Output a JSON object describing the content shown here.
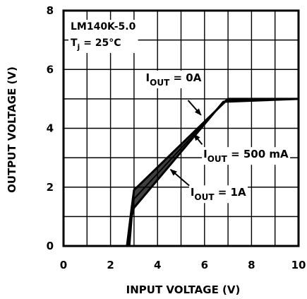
{
  "chart_data": {
    "type": "line",
    "title": {
      "main": "LM140K-5.0",
      "condition_prefix": "T",
      "condition_sub": "j",
      "condition_suffix": " = 25°C"
    },
    "xlabel": "INPUT VOLTAGE (V)",
    "ylabel": "OUTPUT VOLTAGE (V)",
    "xlim": [
      0,
      10
    ],
    "ylim": [
      0,
      8
    ],
    "xticks": [
      0,
      2,
      4,
      6,
      8,
      10
    ],
    "yticks": [
      0,
      2,
      4,
      6,
      8
    ],
    "x_tick_labels": [
      "0",
      "2",
      "4",
      "6",
      "8",
      "10"
    ],
    "y_tick_labels": [
      "0",
      "2",
      "4",
      "6",
      "8"
    ],
    "grid": true,
    "colors": {
      "line": "#000000",
      "grid": "#000000",
      "background": "#ffffff"
    },
    "series": [
      {
        "name": "IOUT = 0A",
        "x": [
          2.7,
          2.9,
          3.0,
          7.0,
          10.0
        ],
        "y": [
          0.0,
          1.3,
          1.9,
          5.0,
          5.0
        ]
      },
      {
        "name": "IOUT = 500 mA",
        "x": [
          2.7,
          2.9,
          3.0,
          6.9,
          10.0
        ],
        "y": [
          0.0,
          1.2,
          1.6,
          4.95,
          5.0
        ]
      },
      {
        "name": "IOUT = 1A",
        "x": [
          2.8,
          2.9,
          3.0,
          6.8,
          10.0
        ],
        "y": [
          0.0,
          1.0,
          1.3,
          4.9,
          5.0
        ]
      }
    ],
    "annotations": [
      {
        "main": "I",
        "sub": "OUT",
        "value": " = 0A",
        "text_at": [
          3.5,
          5.6
        ],
        "arrow_from": [
          5.3,
          4.95
        ],
        "arrow_to": [
          5.85,
          4.45
        ]
      },
      {
        "main": "I",
        "sub": "OUT",
        "value": " = 500 mA",
        "text_at": [
          5.95,
          3.0
        ],
        "arrow_from": [
          5.9,
          3.45
        ],
        "arrow_to": [
          5.55,
          3.8
        ]
      },
      {
        "main": "I",
        "sub": "OUT",
        "value": " = 1A",
        "text_at": [
          5.4,
          1.7
        ],
        "arrow_from": [
          5.35,
          2.05
        ],
        "arrow_to": [
          4.55,
          2.6
        ]
      }
    ]
  }
}
